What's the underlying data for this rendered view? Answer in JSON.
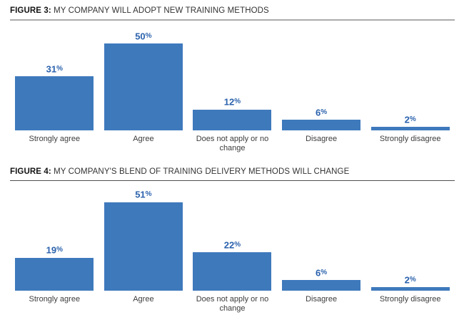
{
  "page": {
    "background": "#ffffff"
  },
  "colors": {
    "bar_fill": "#3e79bc",
    "value_label": "#2b62ad",
    "category_label": "#3c3c3c",
    "figure_label": "#141414",
    "figure_title": "#333333"
  },
  "chart_data": [
    {
      "type": "bar",
      "figure_label": "FIGURE 3:",
      "title": "MY COMPANY WILL ADOPT NEW TRAINING METHODS",
      "categories": [
        "Strongly agree",
        "Agree",
        "Does not apply or no change",
        "Disagree",
        "Strongly disagree"
      ],
      "values": [
        31,
        50,
        12,
        6,
        2
      ],
      "value_labels": [
        "31%",
        "50%",
        "12%",
        "6%",
        "2%"
      ],
      "ylim": [
        0,
        55
      ],
      "grid": false,
      "axes_visible": false,
      "data_label_position": "above-bar",
      "rule_color": "#ababab"
    },
    {
      "type": "bar",
      "figure_label": "FIGURE 4:",
      "title": "MY COMPANY'S BLEND OF TRAINING DELIVERY METHODS WILL CHANGE",
      "categories": [
        "Strongly agree",
        "Agree",
        "Does not apply or no change",
        "Disagree",
        "Strongly disagree"
      ],
      "values": [
        19,
        51,
        22,
        6,
        2
      ],
      "value_labels": [
        "19%",
        "51%",
        "22%",
        "6%",
        "2%"
      ],
      "ylim": [
        0,
        55
      ],
      "grid": false,
      "axes_visible": false,
      "data_label_position": "above-bar",
      "rule_color": "#4f4f4f"
    }
  ]
}
